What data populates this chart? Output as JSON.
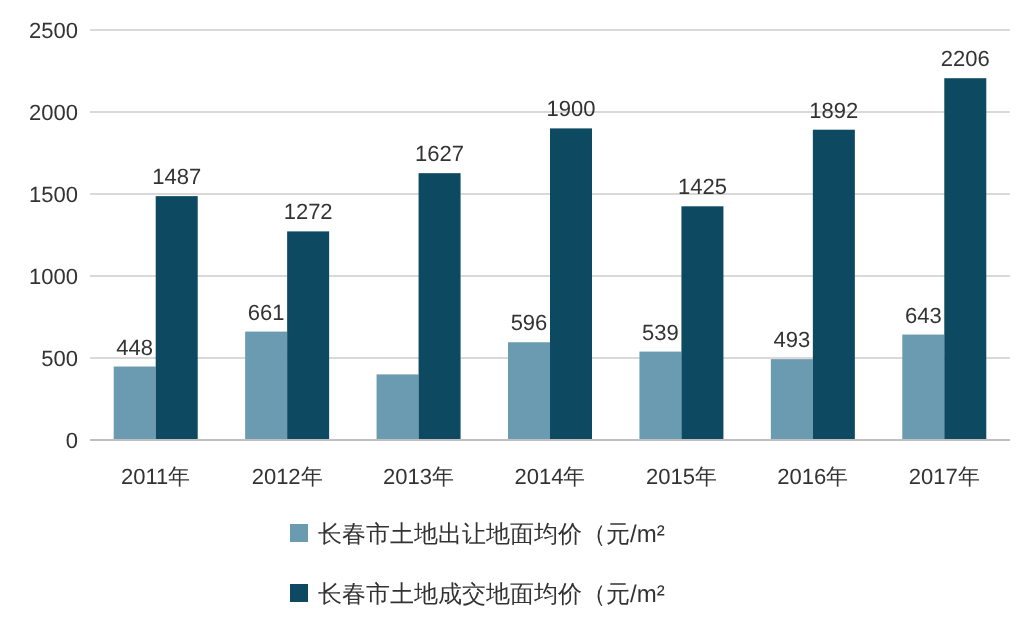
{
  "chart_data": {
    "type": "bar",
    "categories": [
      "2011年",
      "2012年",
      "2013年",
      "2014年",
      "2015年",
      "2016年",
      "2017年"
    ],
    "series": [
      {
        "name": "长春市土地出让地面均价（元/m²",
        "color": "#6a9bb0",
        "values": [
          448,
          661,
          400,
          596,
          539,
          493,
          643
        ],
        "value_labels": [
          "448",
          "661",
          null,
          "596",
          "539",
          "493",
          "643"
        ]
      },
      {
        "name": "长春市土地成交地面均价（元/m²",
        "color": "#0d4a62",
        "values": [
          1487,
          1272,
          1627,
          1900,
          1425,
          1892,
          2206
        ],
        "value_labels": [
          "1487",
          "1272",
          "1627",
          "1900",
          "1425",
          "1892",
          "2206"
        ]
      }
    ],
    "ylim": [
      0,
      2500
    ],
    "yticks": [
      0,
      500,
      1000,
      1500,
      2000,
      2500
    ],
    "grid": "y",
    "legend": "bottom"
  }
}
